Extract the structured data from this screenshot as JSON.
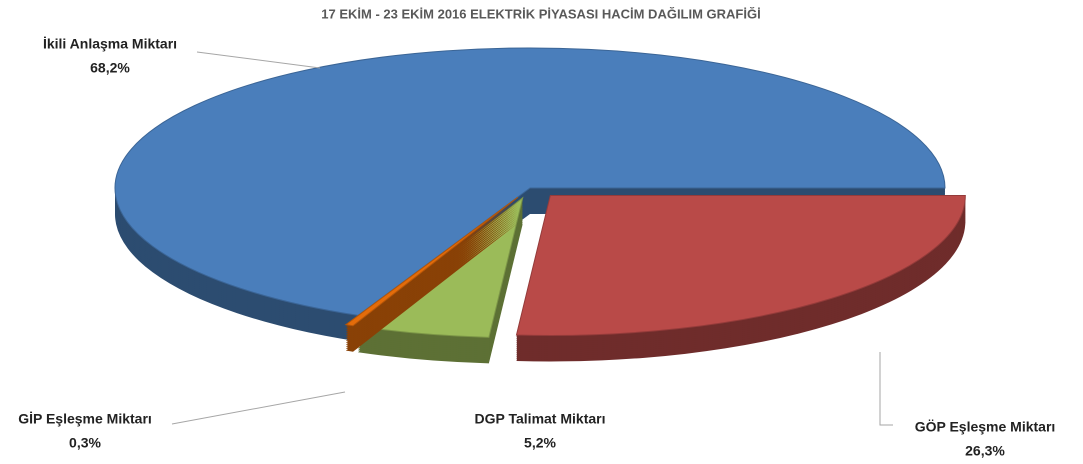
{
  "chart_data": {
    "type": "pie",
    "title": "17 EKİM - 23 EKİM 2016 ELEKTRİK PİYASASI HACİM DAĞILIM GRAFİĞİ",
    "categories": [
      "GÖP Eşleşme Miktarı",
      "DGP Talimat Miktarı",
      "GİP Eşleşme Miktarı",
      "İkili Anlaşma Miktarı"
    ],
    "values": [
      26.3,
      5.2,
      0.3,
      68.2
    ],
    "value_labels": [
      "26,3%",
      "5,2%",
      "0,3%",
      "68,2%"
    ],
    "colors": [
      "#b94a48",
      "#9bbb59",
      "#e46c0a",
      "#4a7ebb"
    ]
  }
}
